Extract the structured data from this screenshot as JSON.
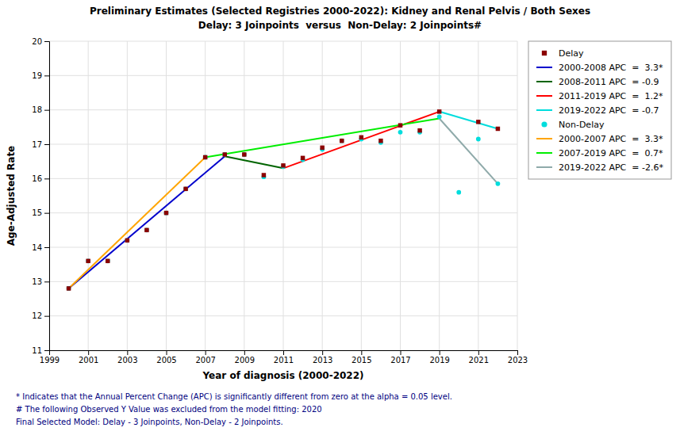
{
  "chart_data": {
    "type": "scatter",
    "title": "Preliminary Estimates (Selected Registries 2000-2022): Kidney and Renal Pelvis / Both Sexes",
    "subtitle": "Delay: 3 Joinpoints  versus  Non-Delay: 2 Joinpoints#",
    "x_label": "Year of diagnosis (2000-2022)",
    "y_label": "Age-Adjusted Rate",
    "xlim": [
      1999,
      2023
    ],
    "ylim": [
      11,
      20
    ],
    "xticks": [
      1999,
      2001,
      2003,
      2005,
      2007,
      2009,
      2011,
      2013,
      2015,
      2017,
      2019,
      2021,
      2023
    ],
    "yticks": [
      11,
      12,
      13,
      14,
      15,
      16,
      17,
      18,
      19,
      20
    ],
    "grid": true,
    "legend": "right",
    "series": [
      {
        "name": "Delay",
        "type": "scatter",
        "marker": "square",
        "color": "#8B0000",
        "x": [
          2000,
          2001,
          2002,
          2003,
          2004,
          2005,
          2006,
          2007,
          2008,
          2009,
          2010,
          2011,
          2012,
          2013,
          2014,
          2015,
          2016,
          2017,
          2018,
          2019,
          2021,
          2022
        ],
        "values": [
          12.8,
          13.6,
          13.6,
          14.2,
          14.5,
          15.0,
          15.7,
          16.62,
          16.7,
          16.7,
          16.1,
          16.38,
          16.6,
          16.9,
          17.1,
          17.2,
          17.1,
          17.55,
          17.4,
          17.95,
          17.65,
          17.45
        ]
      },
      {
        "name": "2000-2008 APC  =  3.3*",
        "type": "line",
        "color": "#0000CC",
        "x": [
          2000,
          2008
        ],
        "values": [
          12.8,
          16.65
        ]
      },
      {
        "name": "2008-2011 APC  = -0.9",
        "type": "line",
        "color": "#006400",
        "x": [
          2008,
          2011
        ],
        "values": [
          16.65,
          16.3
        ]
      },
      {
        "name": "2011-2019 APC  =  1.2*",
        "type": "line",
        "color": "#FF0000",
        "x": [
          2011,
          2019
        ],
        "values": [
          16.3,
          17.95
        ]
      },
      {
        "name": "2019-2022 APC  = -0.7",
        "type": "line",
        "color": "#00DDDD",
        "x": [
          2019,
          2022
        ],
        "values": [
          17.95,
          17.45
        ]
      },
      {
        "name": "Non-Delay",
        "type": "scatter",
        "marker": "circle",
        "color": "#00DDDD",
        "x": [
          2000,
          2001,
          2002,
          2003,
          2004,
          2005,
          2006,
          2007,
          2008,
          2009,
          2010,
          2011,
          2012,
          2013,
          2014,
          2015,
          2016,
          2017,
          2018,
          2019,
          2020,
          2021,
          2022
        ],
        "values": [
          12.8,
          13.6,
          13.6,
          14.2,
          14.5,
          15.0,
          15.7,
          16.62,
          16.7,
          16.7,
          16.05,
          16.35,
          16.55,
          16.85,
          17.1,
          17.15,
          17.05,
          17.35,
          17.35,
          17.8,
          15.6,
          17.15,
          15.85
        ]
      },
      {
        "name": "2000-2007 APC  =  3.3*",
        "type": "line",
        "color": "#FFA500",
        "x": [
          2000,
          2007
        ],
        "values": [
          12.8,
          16.62
        ]
      },
      {
        "name": "2007-2019 APC  =  0.7*",
        "type": "line",
        "color": "#00EE00",
        "x": [
          2007,
          2019
        ],
        "values": [
          16.62,
          17.75
        ]
      },
      {
        "name": "2019-2022 APC  = -2.6*",
        "type": "line",
        "color": "#8FAAAA",
        "x": [
          2019,
          2022
        ],
        "values": [
          17.75,
          15.85
        ]
      }
    ],
    "annotations": [
      "* Indicates that the Annual Percent Change (APC) is significantly different from zero at the alpha = 0.05 level.",
      "# The following Observed Y Value was excluded from the model fitting: 2020",
      "Final Selected Model: Delay - 3 Joinpoints, Non-Delay - 2 Joinpoints."
    ]
  }
}
